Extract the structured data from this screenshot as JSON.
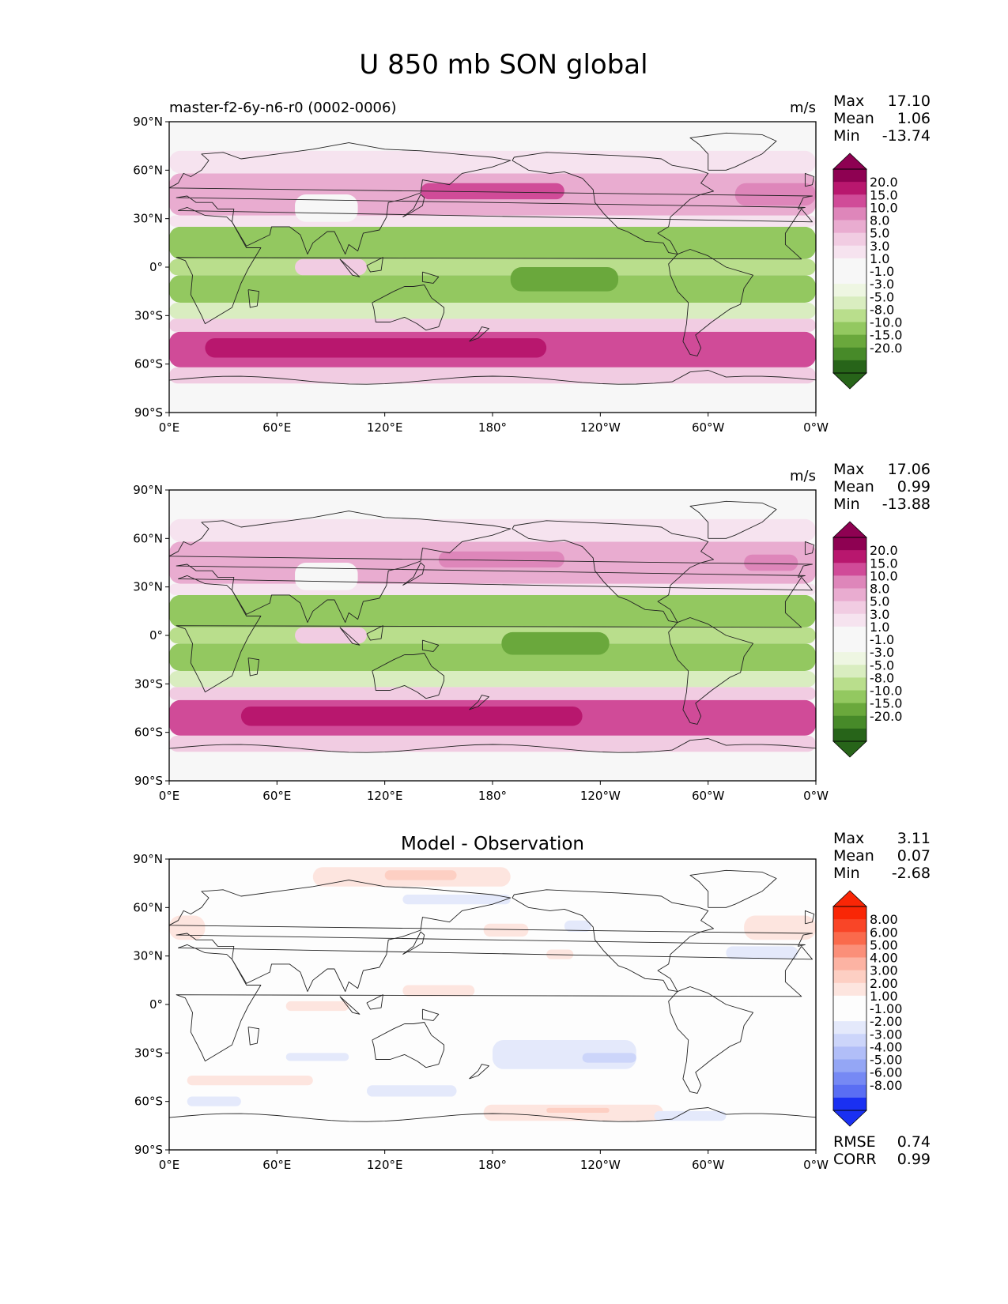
{
  "title": "U 850 mb SON global",
  "x_ticks": [
    "0°E",
    "60°E",
    "120°E",
    "180°",
    "120°W",
    "60°W",
    "0°W"
  ],
  "y_ticks": [
    "90°N",
    "60°N",
    "30°N",
    "0°",
    "30°S",
    "60°S",
    "90°S"
  ],
  "stat_labels": {
    "max": "Max",
    "mean": "Mean",
    "min": "Min",
    "rmse": "RMSE",
    "corr": "CORR"
  },
  "colors": {
    "pos": [
      "#f6e3ef",
      "#f1cce2",
      "#e9acd0",
      "#de86ba",
      "#d04b98",
      "#b8176e",
      "#8e0152"
    ],
    "neg": [
      "#eef6e2",
      "#d9edc0",
      "#b9de8c",
      "#93c860",
      "#6aa83c",
      "#478a29",
      "#276419"
    ],
    "diff_pos": [
      "#fde5df",
      "#fdcfc3",
      "#fcb3a3",
      "#fb8f79",
      "#fa6a4c",
      "#f94527",
      "#f92606"
    ],
    "diff_neg": [
      "#e4e9fb",
      "#ccd5fa",
      "#b1bef8",
      "#94a6f5",
      "#7689f4",
      "#5a6ef3",
      "#1a30f2"
    ]
  },
  "chart_data": [
    {
      "type": "heatmap",
      "panel": "model",
      "subtitle": "master-f2-6y-n6-r0 (0002-0006)",
      "units": "m/s",
      "stats": {
        "max": "17.10",
        "mean": "1.06",
        "min": "-13.74"
      },
      "colorbar_levels": [
        "20.0",
        "15.0",
        "10.0",
        "8.0",
        "5.0",
        "3.0",
        "1.0",
        "-1.0",
        "-3.0",
        "-5.0",
        "-8.0",
        "-10.0",
        "-15.0",
        "-20.0"
      ],
      "xlim": [
        0,
        360
      ],
      "ylim": [
        -90,
        90
      ],
      "bands": [
        {
          "lat": [
            -90,
            -72
          ],
          "lon": [
            0,
            360
          ],
          "value": 0
        },
        {
          "lat": [
            -72,
            -62
          ],
          "lon": [
            0,
            360
          ],
          "value": 4
        },
        {
          "lat": [
            -62,
            -40
          ],
          "lon": [
            0,
            360
          ],
          "value": 12
        },
        {
          "lat": [
            -56,
            -44
          ],
          "lon": [
            20,
            210
          ],
          "value": 16
        },
        {
          "lat": [
            -40,
            -32
          ],
          "lon": [
            0,
            360
          ],
          "value": 4
        },
        {
          "lat": [
            -32,
            -22
          ],
          "lon": [
            0,
            360
          ],
          "value": -4
        },
        {
          "lat": [
            -22,
            -5
          ],
          "lon": [
            0,
            360
          ],
          "value": -9
        },
        {
          "lat": [
            -5,
            5
          ],
          "lon": [
            0,
            360
          ],
          "value": -6
        },
        {
          "lat": [
            5,
            25
          ],
          "lon": [
            0,
            360
          ],
          "value": -8
        },
        {
          "lat": [
            -15,
            0
          ],
          "lon": [
            190,
            250
          ],
          "value": -12
        },
        {
          "lat": [
            -5,
            5
          ],
          "lon": [
            70,
            110
          ],
          "value": 4
        },
        {
          "lat": [
            25,
            32
          ],
          "lon": [
            0,
            360
          ],
          "value": 2
        },
        {
          "lat": [
            32,
            58
          ],
          "lon": [
            0,
            360
          ],
          "value": 7
        },
        {
          "lat": [
            42,
            52
          ],
          "lon": [
            140,
            220
          ],
          "value": 12
        },
        {
          "lat": [
            38,
            52
          ],
          "lon": [
            315,
            360
          ],
          "value": 9
        },
        {
          "lat": [
            28,
            45
          ],
          "lon": [
            70,
            105
          ],
          "value": 0
        },
        {
          "lat": [
            58,
            72
          ],
          "lon": [
            0,
            360
          ],
          "value": 2
        },
        {
          "lat": [
            72,
            90
          ],
          "lon": [
            0,
            360
          ],
          "value": 0
        }
      ]
    },
    {
      "type": "heatmap",
      "panel": "observation",
      "subtitle": "",
      "units": "m/s",
      "stats": {
        "max": "17.06",
        "mean": "0.99",
        "min": "-13.88"
      },
      "colorbar_levels": [
        "20.0",
        "15.0",
        "10.0",
        "8.0",
        "5.0",
        "3.0",
        "1.0",
        "-1.0",
        "-3.0",
        "-5.0",
        "-8.0",
        "-10.0",
        "-15.0",
        "-20.0"
      ],
      "xlim": [
        0,
        360
      ],
      "ylim": [
        -90,
        90
      ],
      "bands": [
        {
          "lat": [
            -90,
            -72
          ],
          "lon": [
            0,
            360
          ],
          "value": 0
        },
        {
          "lat": [
            -72,
            -62
          ],
          "lon": [
            0,
            360
          ],
          "value": 4
        },
        {
          "lat": [
            -62,
            -40
          ],
          "lon": [
            0,
            360
          ],
          "value": 12
        },
        {
          "lat": [
            -56,
            -44
          ],
          "lon": [
            40,
            230
          ],
          "value": 16
        },
        {
          "lat": [
            -40,
            -32
          ],
          "lon": [
            0,
            360
          ],
          "value": 4
        },
        {
          "lat": [
            -32,
            -22
          ],
          "lon": [
            0,
            360
          ],
          "value": -4
        },
        {
          "lat": [
            -22,
            -5
          ],
          "lon": [
            0,
            360
          ],
          "value": -9
        },
        {
          "lat": [
            -5,
            5
          ],
          "lon": [
            0,
            360
          ],
          "value": -6
        },
        {
          "lat": [
            5,
            25
          ],
          "lon": [
            0,
            360
          ],
          "value": -8
        },
        {
          "lat": [
            -12,
            2
          ],
          "lon": [
            185,
            245
          ],
          "value": -12
        },
        {
          "lat": [
            -5,
            5
          ],
          "lon": [
            70,
            110
          ],
          "value": 4
        },
        {
          "lat": [
            25,
            32
          ],
          "lon": [
            0,
            360
          ],
          "value": 2
        },
        {
          "lat": [
            32,
            58
          ],
          "lon": [
            0,
            360
          ],
          "value": 7
        },
        {
          "lat": [
            42,
            52
          ],
          "lon": [
            150,
            220
          ],
          "value": 9
        },
        {
          "lat": [
            40,
            50
          ],
          "lon": [
            320,
            350
          ],
          "value": 9
        },
        {
          "lat": [
            28,
            45
          ],
          "lon": [
            70,
            105
          ],
          "value": 0
        },
        {
          "lat": [
            58,
            72
          ],
          "lon": [
            0,
            360
          ],
          "value": 2
        },
        {
          "lat": [
            72,
            90
          ],
          "lon": [
            0,
            360
          ],
          "value": 0
        }
      ]
    },
    {
      "type": "heatmap",
      "panel": "difference",
      "subtitle": "Model - Observation",
      "units": "",
      "stats": {
        "max": "3.11",
        "mean": "0.07",
        "min": "-2.68",
        "rmse": "0.74",
        "corr": "0.99"
      },
      "colorbar_levels": [
        "8.00",
        "6.00",
        "5.00",
        "4.00",
        "3.00",
        "2.00",
        "1.00",
        "-1.00",
        "-2.00",
        "-3.00",
        "-4.00",
        "-5.00",
        "-6.00",
        "-8.00"
      ],
      "xlim": [
        0,
        360
      ],
      "ylim": [
        -90,
        90
      ],
      "bands": [
        {
          "lat": [
            73,
            85
          ],
          "lon": [
            80,
            190
          ],
          "value": 1.5
        },
        {
          "lat": [
            77,
            83
          ],
          "lon": [
            120,
            160
          ],
          "value": 2.3
        },
        {
          "lat": [
            62,
            68
          ],
          "lon": [
            130,
            190
          ],
          "value": -1.3
        },
        {
          "lat": [
            40,
            55
          ],
          "lon": [
            0,
            20
          ],
          "value": 1.5
        },
        {
          "lat": [
            40,
            55
          ],
          "lon": [
            320,
            360
          ],
          "value": 1.5
        },
        {
          "lat": [
            42,
            50
          ],
          "lon": [
            175,
            200
          ],
          "value": 1.5
        },
        {
          "lat": [
            45,
            52
          ],
          "lon": [
            220,
            235
          ],
          "value": -1.3
        },
        {
          "lat": [
            28,
            36
          ],
          "lon": [
            310,
            350
          ],
          "value": -1.3
        },
        {
          "lat": [
            28,
            34
          ],
          "lon": [
            210,
            225
          ],
          "value": 1.5
        },
        {
          "lat": [
            5,
            12
          ],
          "lon": [
            130,
            170
          ],
          "value": 1.5
        },
        {
          "lat": [
            -4,
            2
          ],
          "lon": [
            65,
            100
          ],
          "value": 1.5
        },
        {
          "lat": [
            -40,
            -22
          ],
          "lon": [
            180,
            260
          ],
          "value": -1.5
        },
        {
          "lat": [
            -36,
            -30
          ],
          "lon": [
            230,
            260
          ],
          "value": -2.3
        },
        {
          "lat": [
            -35,
            -30
          ],
          "lon": [
            65,
            100
          ],
          "value": -1.3
        },
        {
          "lat": [
            -50,
            -44
          ],
          "lon": [
            10,
            80
          ],
          "value": 1.5
        },
        {
          "lat": [
            -57,
            -50
          ],
          "lon": [
            110,
            160
          ],
          "value": -1.3
        },
        {
          "lat": [
            -63,
            -57
          ],
          "lon": [
            10,
            40
          ],
          "value": -1.3
        },
        {
          "lat": [
            -72,
            -62
          ],
          "lon": [
            175,
            275
          ],
          "value": 1.5
        },
        {
          "lat": [
            -67,
            -64
          ],
          "lon": [
            210,
            245
          ],
          "value": 2.3
        },
        {
          "lat": [
            -72,
            -66
          ],
          "lon": [
            270,
            310
          ],
          "value": -1.3
        }
      ]
    }
  ]
}
